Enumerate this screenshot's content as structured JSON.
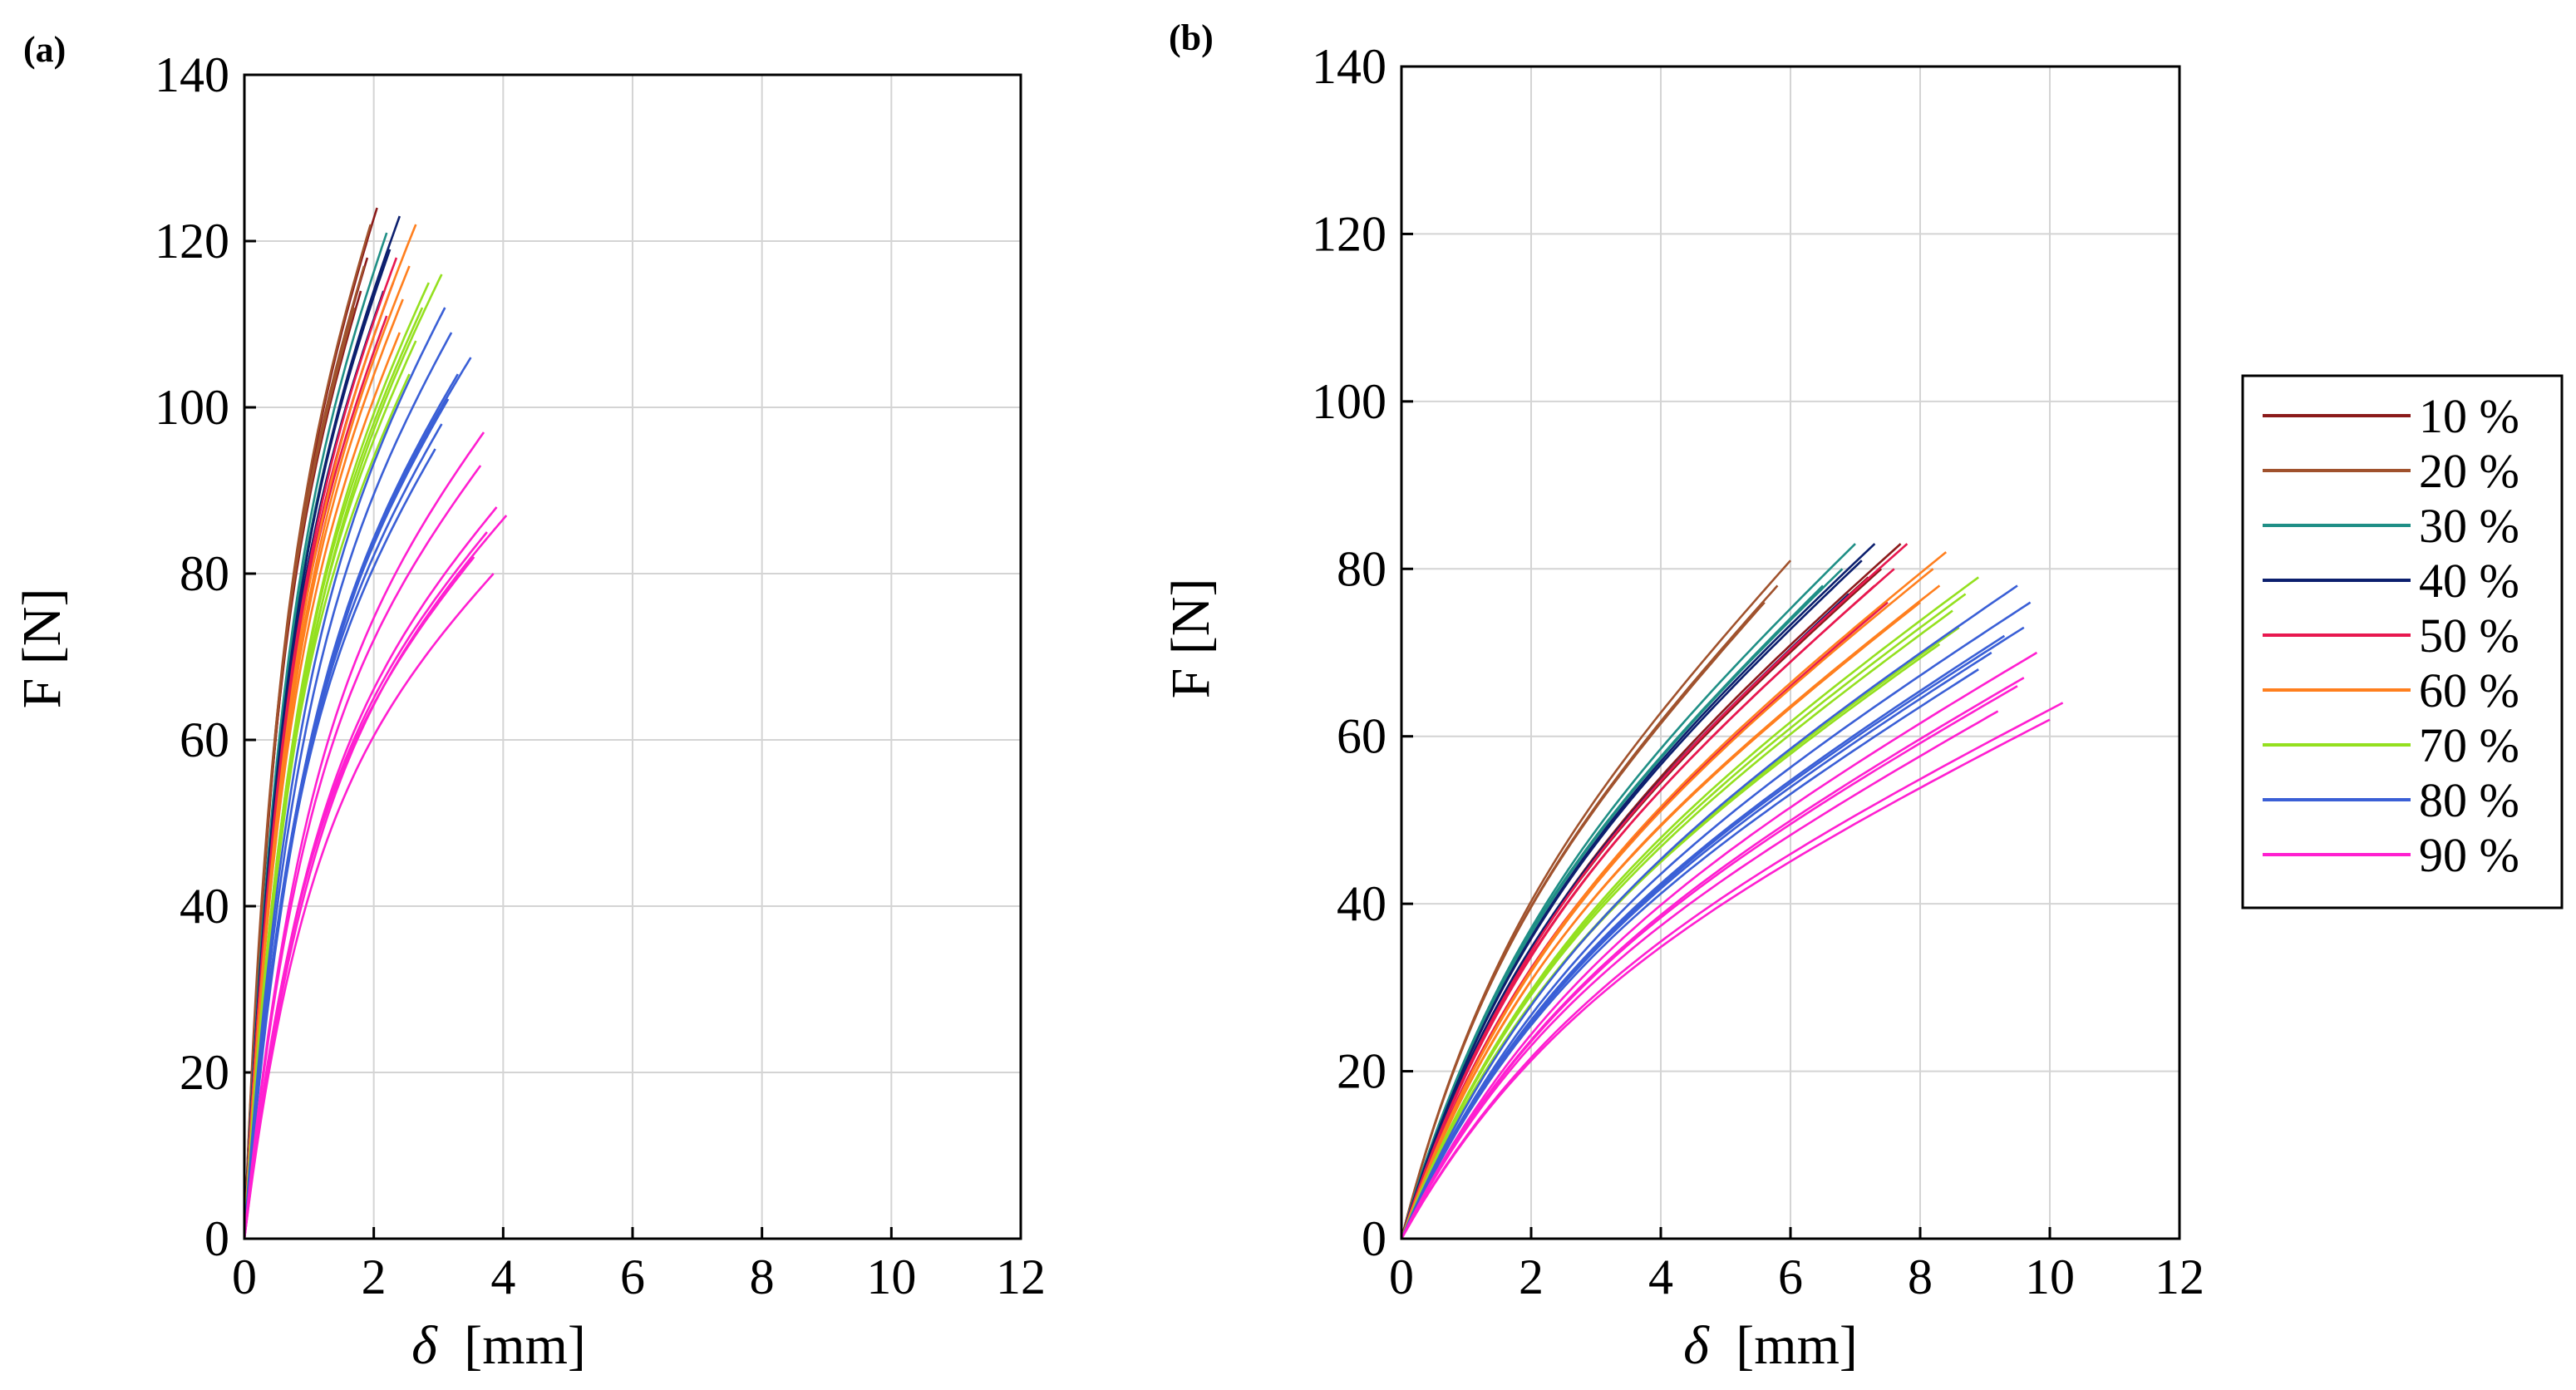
{
  "chart_data": [
    {
      "type": "line",
      "panel_label": "(a)",
      "xlabel_symbol": "δ",
      "xlabel_unit": "[mm]",
      "ylabel": "F [N]",
      "xlim": [
        0,
        12
      ],
      "ylim": [
        0,
        140
      ],
      "xticks": [
        "0",
        "2",
        "4",
        "6",
        "8",
        "10",
        "12"
      ],
      "yticks": [
        "0",
        "20",
        "40",
        "60",
        "80",
        "100",
        "120",
        "140"
      ],
      "grid": true,
      "series": [
        {
          "name": "10 %",
          "color": "#8b1a1a",
          "curves": [
            {
              "x_end": 2.05,
              "y_end": 124
            },
            {
              "x_end": 1.9,
              "y_end": 118
            },
            {
              "x_end": 1.8,
              "y_end": 114
            }
          ]
        },
        {
          "name": "20 %",
          "color": "#a0522d",
          "curves": [
            {
              "x_end": 1.95,
              "y_end": 122
            },
            {
              "x_end": 1.85,
              "y_end": 117
            },
            {
              "x_end": 1.7,
              "y_end": 112
            }
          ]
        },
        {
          "name": "30 %",
          "color": "#1f8f86",
          "curves": [
            {
              "x_end": 2.2,
              "y_end": 121
            },
            {
              "x_end": 2.1,
              "y_end": 116
            }
          ]
        },
        {
          "name": "40 %",
          "color": "#0c1f6e",
          "curves": [
            {
              "x_end": 2.4,
              "y_end": 123
            },
            {
              "x_end": 2.25,
              "y_end": 119
            },
            {
              "x_end": 2.15,
              "y_end": 114
            }
          ]
        },
        {
          "name": "50 %",
          "color": "#e8184f",
          "curves": [
            {
              "x_end": 2.35,
              "y_end": 118
            },
            {
              "x_end": 2.3,
              "y_end": 115
            },
            {
              "x_end": 2.2,
              "y_end": 111
            }
          ]
        },
        {
          "name": "60 %",
          "color": "#ff7f1e",
          "curves": [
            {
              "x_end": 2.65,
              "y_end": 122
            },
            {
              "x_end": 2.55,
              "y_end": 117
            },
            {
              "x_end": 2.45,
              "y_end": 113
            },
            {
              "x_end": 2.4,
              "y_end": 109
            }
          ]
        },
        {
          "name": "70 %",
          "color": "#94e01f",
          "curves": [
            {
              "x_end": 3.05,
              "y_end": 116
            },
            {
              "x_end": 2.85,
              "y_end": 115
            },
            {
              "x_end": 2.75,
              "y_end": 112
            },
            {
              "x_end": 2.65,
              "y_end": 108
            },
            {
              "x_end": 2.55,
              "y_end": 104
            }
          ]
        },
        {
          "name": "80 %",
          "color": "#3a5fd6",
          "curves": [
            {
              "x_end": 3.5,
              "y_end": 106
            },
            {
              "x_end": 3.1,
              "y_end": 112
            },
            {
              "x_end": 3.2,
              "y_end": 109
            },
            {
              "x_end": 3.3,
              "y_end": 104
            },
            {
              "x_end": 3.15,
              "y_end": 101
            },
            {
              "x_end": 3.05,
              "y_end": 98
            },
            {
              "x_end": 2.95,
              "y_end": 95
            }
          ]
        },
        {
          "name": "90 %",
          "color": "#ff1fd0",
          "curves": [
            {
              "x_end": 3.7,
              "y_end": 97
            },
            {
              "x_end": 3.65,
              "y_end": 93
            },
            {
              "x_end": 3.9,
              "y_end": 88
            },
            {
              "x_end": 4.05,
              "y_end": 87
            },
            {
              "x_end": 3.75,
              "y_end": 85
            },
            {
              "x_end": 3.85,
              "y_end": 80
            },
            {
              "x_end": 3.55,
              "y_end": 82
            }
          ]
        }
      ]
    },
    {
      "type": "line",
      "panel_label": "(b)",
      "xlabel_symbol": "δ",
      "xlabel_unit": "[mm]",
      "ylabel": "F [N]",
      "xlim": [
        0,
        12
      ],
      "ylim": [
        0,
        140
      ],
      "xticks": [
        "0",
        "2",
        "4",
        "6",
        "8",
        "10",
        "12"
      ],
      "yticks": [
        "0",
        "20",
        "40",
        "60",
        "80",
        "100",
        "120",
        "140"
      ],
      "grid": true,
      "legend_position": "right",
      "series": [
        {
          "name": "10 %",
          "color": "#8b1a1a",
          "curves": [
            {
              "x_end": 7.7,
              "y_end": 83
            },
            {
              "x_end": 7.4,
              "y_end": 80
            },
            {
              "x_end": 7.2,
              "y_end": 79
            }
          ]
        },
        {
          "name": "20 %",
          "color": "#a0522d",
          "curves": [
            {
              "x_end": 6.0,
              "y_end": 81
            },
            {
              "x_end": 5.8,
              "y_end": 78
            },
            {
              "x_end": 5.6,
              "y_end": 76
            }
          ]
        },
        {
          "name": "30 %",
          "color": "#1f8f86",
          "curves": [
            {
              "x_end": 7.0,
              "y_end": 83
            },
            {
              "x_end": 6.8,
              "y_end": 80
            },
            {
              "x_end": 6.5,
              "y_end": 78
            }
          ]
        },
        {
          "name": "40 %",
          "color": "#0c1f6e",
          "curves": [
            {
              "x_end": 7.3,
              "y_end": 83
            },
            {
              "x_end": 7.1,
              "y_end": 81
            },
            {
              "x_end": 6.9,
              "y_end": 77
            }
          ]
        },
        {
          "name": "50 %",
          "color": "#e8184f",
          "curves": [
            {
              "x_end": 7.8,
              "y_end": 83
            },
            {
              "x_end": 7.6,
              "y_end": 80
            },
            {
              "x_end": 7.3,
              "y_end": 78
            },
            {
              "x_end": 7.5,
              "y_end": 76
            }
          ]
        },
        {
          "name": "60 %",
          "color": "#ff7f1e",
          "curves": [
            {
              "x_end": 8.4,
              "y_end": 82
            },
            {
              "x_end": 8.2,
              "y_end": 80
            },
            {
              "x_end": 8.3,
              "y_end": 78
            },
            {
              "x_end": 8.0,
              "y_end": 76
            }
          ]
        },
        {
          "name": "70 %",
          "color": "#94e01f",
          "curves": [
            {
              "x_end": 8.9,
              "y_end": 79
            },
            {
              "x_end": 8.7,
              "y_end": 77
            },
            {
              "x_end": 8.5,
              "y_end": 75
            },
            {
              "x_end": 8.6,
              "y_end": 73
            },
            {
              "x_end": 8.3,
              "y_end": 71
            }
          ]
        },
        {
          "name": "80 %",
          "color": "#3a5fd6",
          "curves": [
            {
              "x_end": 9.5,
              "y_end": 78
            },
            {
              "x_end": 9.7,
              "y_end": 76
            },
            {
              "x_end": 9.6,
              "y_end": 73
            },
            {
              "x_end": 9.3,
              "y_end": 72
            },
            {
              "x_end": 9.1,
              "y_end": 70
            },
            {
              "x_end": 8.9,
              "y_end": 68
            }
          ]
        },
        {
          "name": "90 %",
          "color": "#ff1fd0",
          "curves": [
            {
              "x_end": 10.2,
              "y_end": 64
            },
            {
              "x_end": 9.8,
              "y_end": 70
            },
            {
              "x_end": 9.6,
              "y_end": 67
            },
            {
              "x_end": 9.5,
              "y_end": 66
            },
            {
              "x_end": 9.2,
              "y_end": 63
            },
            {
              "x_end": 10.0,
              "y_end": 62
            }
          ]
        }
      ]
    }
  ]
}
